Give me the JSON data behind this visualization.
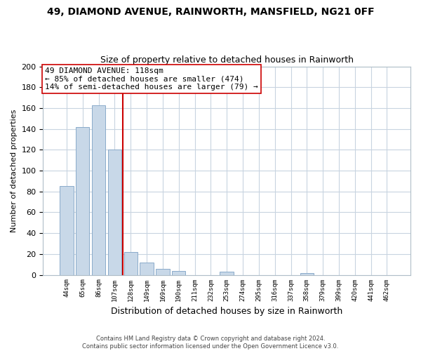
{
  "title": "49, DIAMOND AVENUE, RAINWORTH, MANSFIELD, NG21 0FF",
  "subtitle": "Size of property relative to detached houses in Rainworth",
  "xlabel": "Distribution of detached houses by size in Rainworth",
  "ylabel": "Number of detached properties",
  "categories": [
    "44sqm",
    "65sqm",
    "86sqm",
    "107sqm",
    "128sqm",
    "149sqm",
    "169sqm",
    "190sqm",
    "211sqm",
    "232sqm",
    "253sqm",
    "274sqm",
    "295sqm",
    "316sqm",
    "337sqm",
    "358sqm",
    "379sqm",
    "399sqm",
    "420sqm",
    "441sqm",
    "462sqm"
  ],
  "values": [
    85,
    142,
    163,
    120,
    22,
    12,
    6,
    4,
    0,
    0,
    3,
    0,
    0,
    0,
    0,
    2,
    0,
    0,
    0,
    0,
    0
  ],
  "bar_color": "#c8d8e8",
  "bar_edge_color": "#8aabca",
  "vline_x": 3.5,
  "vline_color": "#cc0000",
  "annotation_text": "49 DIAMOND AVENUE: 118sqm\n← 85% of detached houses are smaller (474)\n14% of semi-detached houses are larger (79) →",
  "annotation_box_color": "#ffffff",
  "annotation_box_edge": "#cc0000",
  "ylim": [
    0,
    200
  ],
  "yticks": [
    0,
    20,
    40,
    60,
    80,
    100,
    120,
    140,
    160,
    180,
    200
  ],
  "footer_line1": "Contains HM Land Registry data © Crown copyright and database right 2024.",
  "footer_line2": "Contains public sector information licensed under the Open Government Licence v3.0.",
  "background_color": "#ffffff",
  "grid_color": "#c8d4e0",
  "title_fontsize": 10,
  "subtitle_fontsize": 9
}
